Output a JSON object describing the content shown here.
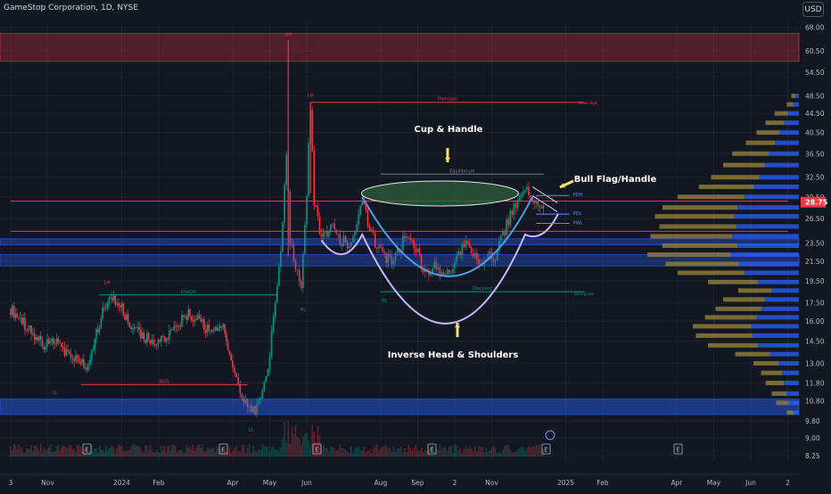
{
  "header": {
    "symbol": "GameStop Corporation, 1D, NYSE",
    "currency_button": "USD",
    "last_price_label": "28.75"
  },
  "chart_data": {
    "type": "candlestick",
    "y_scale": "log",
    "ylim": [
      8.0,
      70.0
    ],
    "y_ticks": [
      "68.00",
      "60.50",
      "54.50",
      "48.50",
      "44.50",
      "40.50",
      "36.50",
      "32.50",
      "29.50",
      "26.50",
      "23.50",
      "21.50",
      "19.50",
      "17.50",
      "16.00",
      "14.50",
      "13.00",
      "11.80",
      "10.80",
      "9.80",
      "9.00",
      "8.25"
    ],
    "x_ticks": [
      {
        "label": "3",
        "pos": 0.0
      },
      {
        "label": "Nov",
        "pos": 1.0
      },
      {
        "label": "2024",
        "pos": 3.0
      },
      {
        "label": "Feb",
        "pos": 4.0
      },
      {
        "label": "Apr",
        "pos": 6.0
      },
      {
        "label": "May",
        "pos": 7.0
      },
      {
        "label": "Jun",
        "pos": 8.0
      },
      {
        "label": "Aug",
        "pos": 10.0
      },
      {
        "label": "Sep",
        "pos": 11.0
      },
      {
        "label": "2",
        "pos": 12.0
      },
      {
        "label": "Nov",
        "pos": 13.0
      },
      {
        "label": "2025",
        "pos": 15.0
      },
      {
        "label": "Feb",
        "pos": 16.0
      },
      {
        "label": "Apr",
        "pos": 18.0
      },
      {
        "label": "May",
        "pos": 19.0
      },
      {
        "label": "Jun",
        "pos": 20.0
      },
      {
        "label": "2",
        "pos": 21.0
      }
    ],
    "price_path": [
      [
        0.0,
        17.0
      ],
      [
        0.3,
        16.0
      ],
      [
        0.6,
        15.0
      ],
      [
        0.9,
        14.2
      ],
      [
        1.2,
        14.6
      ],
      [
        1.5,
        13.8
      ],
      [
        1.8,
        13.2
      ],
      [
        2.1,
        12.6
      ],
      [
        2.4,
        16.0
      ],
      [
        2.7,
        18.2
      ],
      [
        3.0,
        17.0
      ],
      [
        3.3,
        15.4
      ],
      [
        3.6,
        14.8
      ],
      [
        3.9,
        14.3
      ],
      [
        4.2,
        14.8
      ],
      [
        4.5,
        15.6
      ],
      [
        4.8,
        16.6
      ],
      [
        5.1,
        16.0
      ],
      [
        5.4,
        15.0
      ],
      [
        5.7,
        15.8
      ],
      [
        6.0,
        12.5
      ],
      [
        6.2,
        11.2
      ],
      [
        6.4,
        10.6
      ],
      [
        6.6,
        10.1
      ],
      [
        6.8,
        11.4
      ],
      [
        7.0,
        13.5
      ],
      [
        7.15,
        17.5
      ],
      [
        7.3,
        22.0
      ],
      [
        7.45,
        36.0
      ],
      [
        7.55,
        23.5
      ],
      [
        7.7,
        21.0
      ],
      [
        7.85,
        19.0
      ],
      [
        8.0,
        30.0
      ],
      [
        8.1,
        46.0
      ],
      [
        8.2,
        29.0
      ],
      [
        8.35,
        25.0
      ],
      [
        8.5,
        24.5
      ],
      [
        8.7,
        25.5
      ],
      [
        8.9,
        24.0
      ],
      [
        9.1,
        23.5
      ],
      [
        9.3,
        24.5
      ],
      [
        9.5,
        28.5
      ],
      [
        9.7,
        25.5
      ],
      [
        9.9,
        23.0
      ],
      [
        10.1,
        22.0
      ],
      [
        10.3,
        21.5
      ],
      [
        10.5,
        23.0
      ],
      [
        10.7,
        24.5
      ],
      [
        10.9,
        23.5
      ],
      [
        11.1,
        21.0
      ],
      [
        11.3,
        20.5
      ],
      [
        11.5,
        21.0
      ],
      [
        11.7,
        20.0
      ],
      [
        11.9,
        20.8
      ],
      [
        12.1,
        22.5
      ],
      [
        12.3,
        23.5
      ],
      [
        12.5,
        22.0
      ],
      [
        12.7,
        21.2
      ],
      [
        12.9,
        22.4
      ],
      [
        13.1,
        22.0
      ],
      [
        13.3,
        24.5
      ],
      [
        13.5,
        27.0
      ],
      [
        13.7,
        28.5
      ],
      [
        13.9,
        30.5
      ],
      [
        14.1,
        29.5
      ],
      [
        14.3,
        28.0
      ],
      [
        14.45,
        28.75
      ]
    ],
    "volume_profile": [
      {
        "price": 48.5,
        "value": 0.05
      },
      {
        "price": 46.5,
        "value": 0.08
      },
      {
        "price": 44.5,
        "value": 0.16
      },
      {
        "price": 42.5,
        "value": 0.22
      },
      {
        "price": 40.5,
        "value": 0.28
      },
      {
        "price": 38.5,
        "value": 0.35
      },
      {
        "price": 36.5,
        "value": 0.44
      },
      {
        "price": 34.5,
        "value": 0.5
      },
      {
        "price": 32.5,
        "value": 0.58
      },
      {
        "price": 31.0,
        "value": 0.66
      },
      {
        "price": 29.5,
        "value": 0.8
      },
      {
        "price": 28.0,
        "value": 0.9
      },
      {
        "price": 26.8,
        "value": 0.95
      },
      {
        "price": 25.5,
        "value": 0.92
      },
      {
        "price": 24.3,
        "value": 0.98
      },
      {
        "price": 23.2,
        "value": 0.9
      },
      {
        "price": 22.2,
        "value": 1.0
      },
      {
        "price": 21.2,
        "value": 0.88
      },
      {
        "price": 20.3,
        "value": 0.8
      },
      {
        "price": 19.4,
        "value": 0.6
      },
      {
        "price": 18.6,
        "value": 0.4
      },
      {
        "price": 17.8,
        "value": 0.5
      },
      {
        "price": 17.0,
        "value": 0.55
      },
      {
        "price": 16.3,
        "value": 0.62
      },
      {
        "price": 15.6,
        "value": 0.7
      },
      {
        "price": 14.9,
        "value": 0.68
      },
      {
        "price": 14.2,
        "value": 0.6
      },
      {
        "price": 13.6,
        "value": 0.42
      },
      {
        "price": 13.0,
        "value": 0.3
      },
      {
        "price": 12.4,
        "value": 0.25
      },
      {
        "price": 11.8,
        "value": 0.22
      },
      {
        "price": 11.2,
        "value": 0.18
      },
      {
        "price": 10.7,
        "value": 0.15
      },
      {
        "price": 10.2,
        "value": 0.08
      }
    ],
    "zones": [
      {
        "label": "",
        "low": 57.5,
        "high": 66.0,
        "color": "#f23645",
        "opacity": 0.28
      },
      {
        "label": "",
        "low": 10.1,
        "high": 10.9,
        "color": "#2962ff",
        "opacity": 0.45
      },
      {
        "label": "",
        "low": 23.3,
        "high": 24.0,
        "color": "#2962ff",
        "opacity": 0.35
      },
      {
        "label": "",
        "low": 21.0,
        "high": 22.2,
        "color": "#2962ff",
        "opacity": 0.3
      }
    ],
    "hlines": [
      {
        "price": 28.9,
        "color": "#f23645",
        "x0": 0.0,
        "x1": 21.0
      },
      {
        "price": 24.9,
        "color": "#f23645",
        "x0": 0.0,
        "x1": 21.0
      },
      {
        "price": 11.7,
        "color": "#f23645",
        "x0": 1.9,
        "x1": 6.4,
        "label": "BOS"
      },
      {
        "price": 18.2,
        "color": "#089981",
        "x0": 2.4,
        "x1": 7.2,
        "label": "ChoCH"
      },
      {
        "price": 47.0,
        "color": "#f23645",
        "x0": 8.1,
        "x1": 15.5,
        "label": "Premium"
      },
      {
        "price": 18.5,
        "color": "#089981",
        "x0": 10.0,
        "x1": 15.5,
        "label": "Discount"
      },
      {
        "price": 33.0,
        "color": "#787b86",
        "x0": 10.0,
        "x1": 14.4,
        "label": "Equilibrium"
      }
    ],
    "annotations": [
      {
        "text": "Cup & Handle",
        "big": true
      },
      {
        "text": "Bull Flag/Handle",
        "big": true
      },
      {
        "text": "Inverse Head & Shoulders",
        "big": true
      },
      {
        "text": "HH",
        "color": "#f23645"
      },
      {
        "text": "LH",
        "color": "#f23645"
      },
      {
        "text": "LH",
        "color": "#f23645"
      },
      {
        "text": "HL",
        "color": "#089981"
      },
      {
        "text": "HL",
        "color": "#089981"
      },
      {
        "text": "LL",
        "color": "#089981"
      },
      {
        "text": "LL",
        "color": "#089981"
      },
      {
        "text": "Weak High",
        "color": "#f23645"
      },
      {
        "text": "Strong Low",
        "color": "#089981"
      },
      {
        "text": "PDH",
        "color": "#5b8cff"
      },
      {
        "text": "PDL",
        "color": "#5b8cff"
      },
      {
        "text": "PWL",
        "color": "#5b8cff"
      }
    ],
    "event_markers": [
      "E",
      "E",
      "E",
      "E",
      "E",
      "E",
      "E"
    ]
  },
  "colors": {
    "bg": "#131722",
    "grid": "#1e222d",
    "up": "#089981",
    "down": "#f23645",
    "profile_blue": "#2962ff",
    "profile_gold": "#8b7a3a",
    "cup_fill": "#2e5f3a",
    "ihs": "#c8b8ff",
    "handle": "#4a9eea",
    "text": "#d1d4dc",
    "axis": "#b2b5be",
    "yellow": "#f5e46b"
  }
}
